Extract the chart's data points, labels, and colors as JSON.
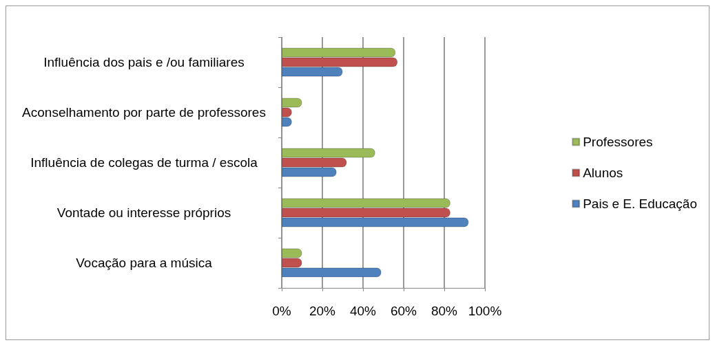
{
  "chart_data": {
    "type": "bar",
    "orientation": "horizontal",
    "categories": [
      "Influência dos pais e /ou familiares",
      "Aconselhamento por parte de professores",
      "Influência de colegas de turma / escola",
      "Vontade ou interesse próprios",
      "Vocação para a música"
    ],
    "series": [
      {
        "name": "Professores",
        "color": "#9bbb59",
        "values": [
          56,
          10,
          46,
          83,
          10
        ]
      },
      {
        "name": "Alunos",
        "color": "#c0504d",
        "values": [
          57,
          5,
          32,
          83,
          10
        ]
      },
      {
        "name": "Pais e E. Educação",
        "color": "#4f81bd",
        "values": [
          30,
          5,
          27,
          92,
          49
        ]
      }
    ],
    "xlim": [
      0,
      100
    ],
    "xticks": [
      {
        "value": 0,
        "label": "0%"
      },
      {
        "value": 20,
        "label": "20%"
      },
      {
        "value": 40,
        "label": "40%"
      },
      {
        "value": 60,
        "label": "60%"
      },
      {
        "value": 80,
        "label": "80%"
      },
      {
        "value": 100,
        "label": "100%"
      }
    ],
    "grid": "x",
    "legend": "right"
  }
}
